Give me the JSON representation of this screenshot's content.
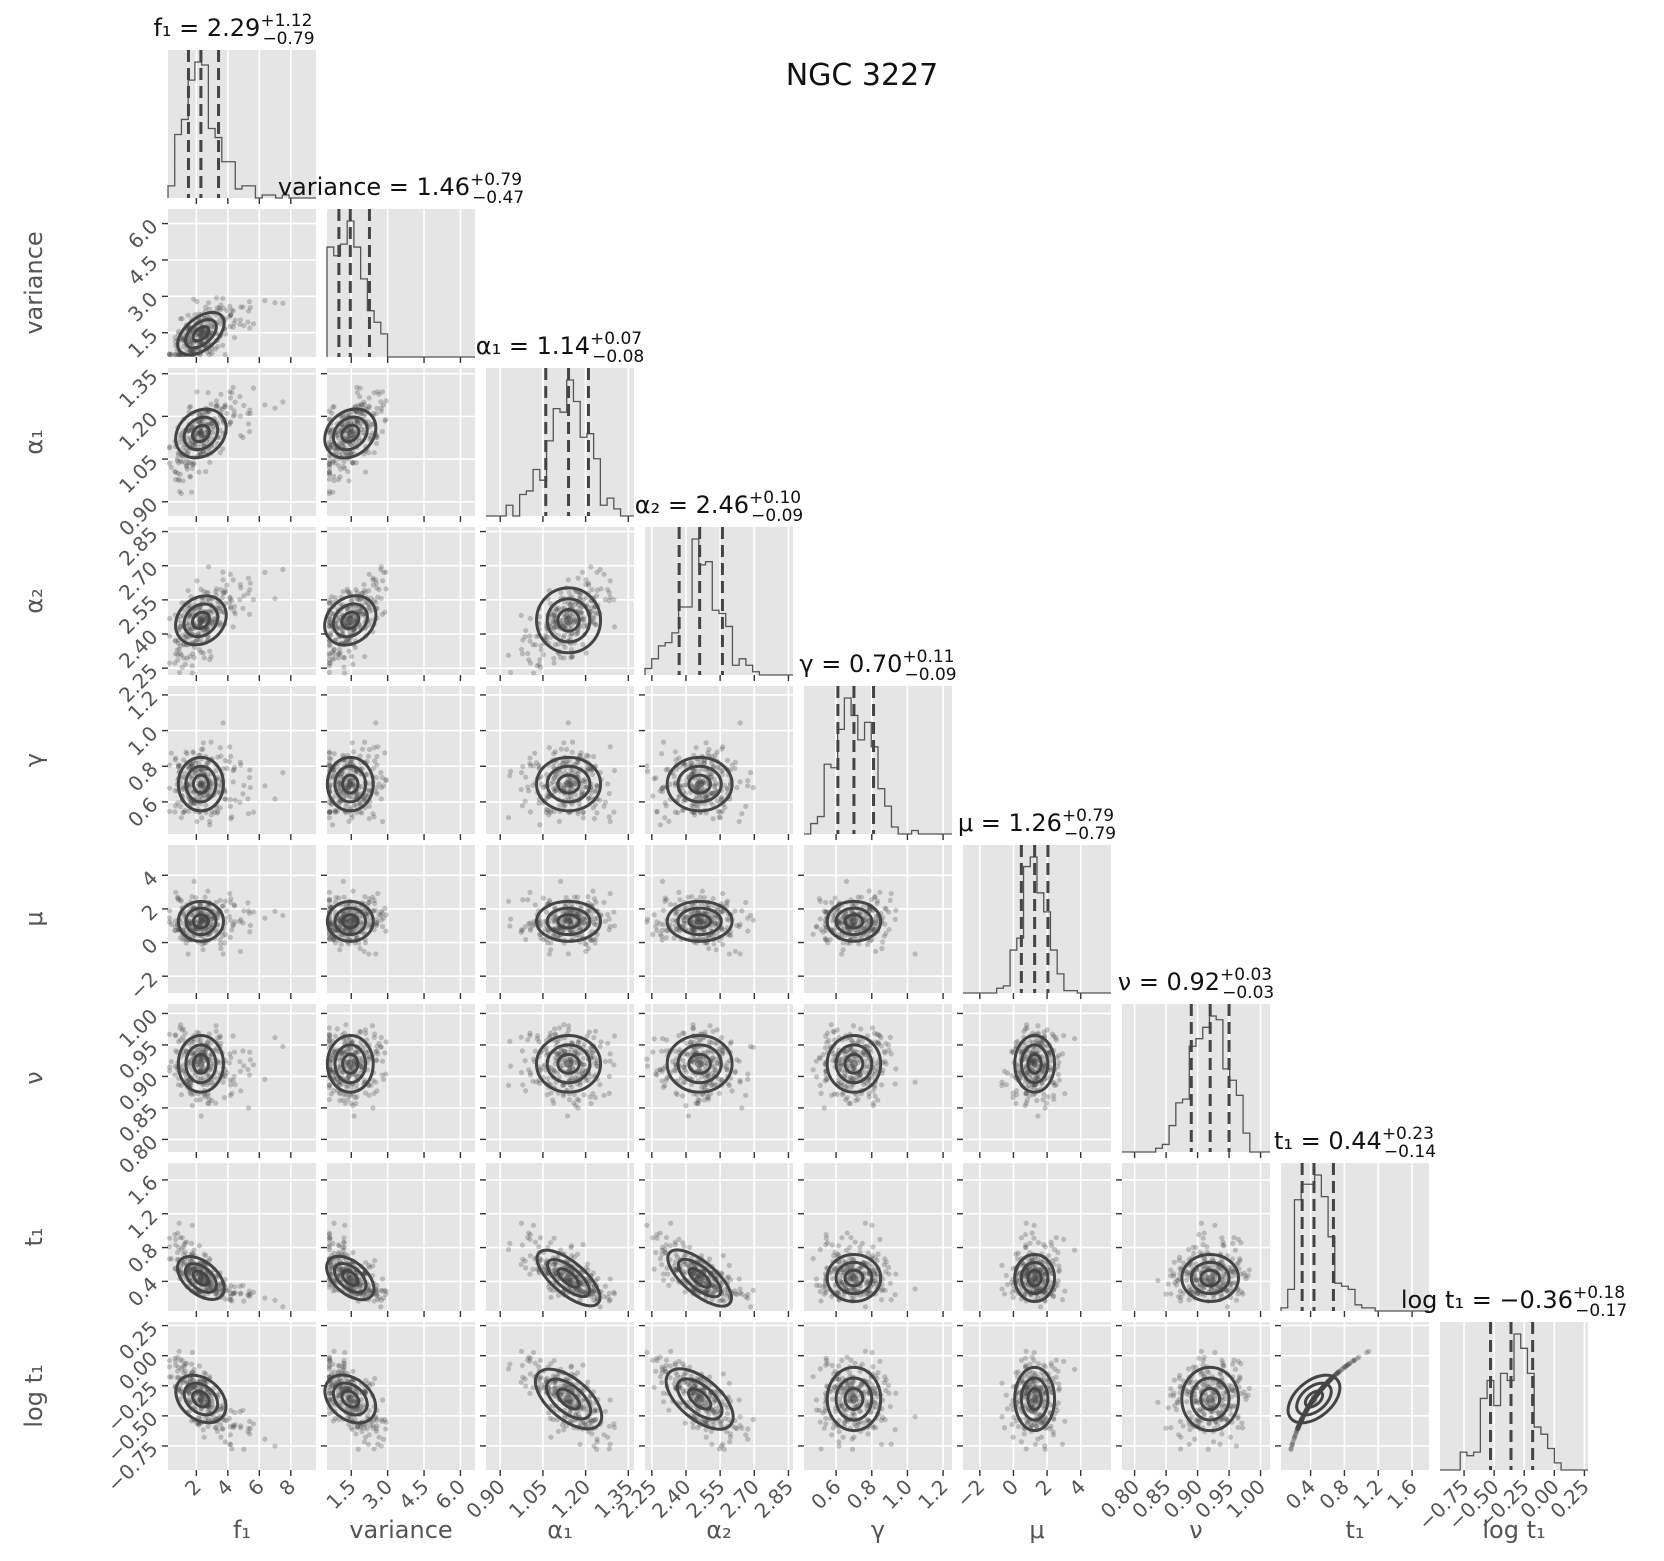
{
  "chart_data": {
    "type": "scatter",
    "subtype": "corner-plot",
    "title": "NGC 3227",
    "parameters": [
      {
        "label": "f₁",
        "median": 2.29,
        "plus": 1.12,
        "minus": 0.79,
        "title": "f₁ = 2.29",
        "sup": "+1.12",
        "sub": "−0.79",
        "range": [
          0.2,
          9.6
        ],
        "ticks": [
          2,
          4,
          6,
          8
        ],
        "ticklabels": [
          "2",
          "4",
          "6",
          "8"
        ]
      },
      {
        "label": "variance",
        "median": 1.46,
        "plus": 0.79,
        "minus": 0.47,
        "title": "variance = 1.46",
        "sup": "+0.79",
        "sub": "−0.47",
        "range": [
          0.5,
          6.6
        ],
        "ticks": [
          1.5,
          3.0,
          4.5,
          6.0
        ],
        "ticklabels": [
          "1.5",
          "3.0",
          "4.5",
          "6.0"
        ]
      },
      {
        "label": "α₁",
        "median": 1.14,
        "plus": 0.07,
        "minus": 0.08,
        "title": "α₁ = 1.14",
        "sup": "+0.07",
        "sub": "−0.08",
        "range": [
          0.85,
          1.37
        ],
        "ticks": [
          0.9,
          1.05,
          1.2,
          1.35
        ],
        "ticklabels": [
          "0.90",
          "1.05",
          "1.20",
          "1.35"
        ]
      },
      {
        "label": "α₂",
        "median": 2.46,
        "plus": 0.1,
        "minus": 0.09,
        "title": "α₂ = 2.46",
        "sup": "+0.10",
        "sub": "−0.09",
        "range": [
          2.22,
          2.87
        ],
        "ticks": [
          2.25,
          2.4,
          2.55,
          2.7,
          2.85
        ],
        "ticklabels": [
          "2.25",
          "2.40",
          "2.55",
          "2.70",
          "2.85"
        ]
      },
      {
        "label": "γ",
        "median": 0.7,
        "plus": 0.11,
        "minus": 0.09,
        "title": "γ = 0.70",
        "sup": "+0.11",
        "sub": "−0.09",
        "range": [
          0.42,
          1.25
        ],
        "ticks": [
          0.6,
          0.8,
          1.0,
          1.2
        ],
        "ticklabels": [
          "0.6",
          "0.8",
          "1.0",
          "1.2"
        ]
      },
      {
        "label": "μ",
        "median": 1.26,
        "plus": 0.79,
        "minus": 0.79,
        "title": "μ = 1.26",
        "sup": "+0.79",
        "sub": "−0.79",
        "range": [
          -3.0,
          5.8
        ],
        "ticks": [
          -2,
          0,
          2,
          4
        ],
        "ticklabels": [
          "−2",
          "0",
          "2",
          "4"
        ]
      },
      {
        "label": "ν",
        "median": 0.92,
        "plus": 0.03,
        "minus": 0.03,
        "title": "ν = 0.92",
        "sup": "+0.03",
        "sub": "−0.03",
        "range": [
          0.78,
          1.015
        ],
        "ticks": [
          0.8,
          0.85,
          0.9,
          0.95,
          1.0
        ],
        "ticklabels": [
          "0.80",
          "0.85",
          "0.90",
          "0.95",
          "1.00"
        ]
      },
      {
        "label": "t₁",
        "median": 0.44,
        "plus": 0.23,
        "minus": 0.14,
        "title": "t₁ = 0.44",
        "sup": "+0.23",
        "sub": "−0.14",
        "range": [
          0.05,
          1.8
        ],
        "ticks": [
          0.4,
          0.8,
          1.2,
          1.6
        ],
        "ticklabels": [
          "0.4",
          "0.8",
          "1.2",
          "1.6"
        ]
      },
      {
        "label": "log t₁",
        "median": -0.36,
        "plus": 0.18,
        "minus": 0.17,
        "title": "log t₁ = −0.36",
        "sup": "+0.18",
        "sub": "−0.17",
        "range": [
          -0.95,
          0.28
        ],
        "ticks": [
          -0.75,
          -0.5,
          -0.25,
          0.0,
          0.25
        ],
        "ticklabels": [
          "−0.75",
          "−0.50",
          "−0.25",
          "0.00",
          "0.25"
        ]
      }
    ],
    "ylabel_params": [
      "variance",
      "α₁",
      "α₂",
      "γ",
      "μ",
      "ν",
      "t₁",
      "log t₁"
    ],
    "quantile_lines": "16th, 50th, 84th percentiles (dashed)",
    "grid": true,
    "style": "ggplot grey"
  }
}
